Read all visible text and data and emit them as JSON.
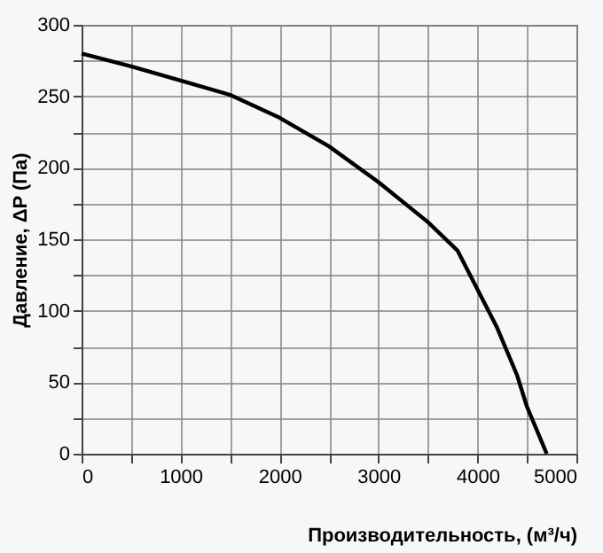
{
  "chart_data": {
    "type": "line",
    "xlabel": "Производительность, (м³/ч)",
    "ylabel": "Давление, ΔP (Па)",
    "xlim": [
      0,
      5000
    ],
    "ylim": [
      0,
      300
    ],
    "xticks": [
      0,
      {
        "value": 500,
        "label": null
      },
      1000,
      {
        "value": 1500,
        "label": null
      },
      2000,
      {
        "value": 2500,
        "label": null
      },
      3000,
      {
        "value": 3500,
        "label": null
      },
      4000,
      {
        "value": 4500,
        "label": null
      },
      5000
    ],
    "yticks": [
      0,
      {
        "value": 25,
        "label": null
      },
      50,
      {
        "value": 75,
        "label": null
      },
      100,
      {
        "value": 125,
        "label": null
      },
      150,
      {
        "value": 175,
        "label": null
      },
      200,
      {
        "value": 225,
        "label": null
      },
      250,
      {
        "value": 275,
        "label": null
      },
      300
    ],
    "grid": true,
    "marker": "none",
    "line_style": "solid",
    "series": [
      {
        "color": "#000000",
        "x": [
          0,
          500,
          1000,
          1500,
          2000,
          2500,
          3000,
          3500,
          3800,
          4000,
          4200,
          4400,
          4500,
          4700
        ],
        "values": [
          280,
          271,
          261,
          251,
          235,
          215,
          190,
          162,
          142,
          115,
          88,
          55,
          33,
          0
        ]
      }
    ]
  }
}
